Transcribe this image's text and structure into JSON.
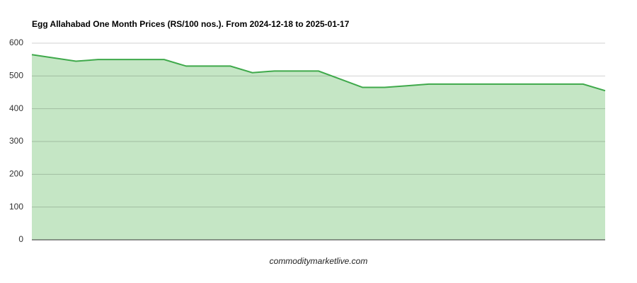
{
  "chart_data": {
    "type": "area",
    "title": "Egg Allahabad One Month Prices (RS/100 nos.). From 2024-12-18 to 2025-01-17",
    "source": "commoditymarketlive.com",
    "values": [
      565,
      555,
      545,
      550,
      550,
      550,
      550,
      530,
      530,
      530,
      510,
      515,
      515,
      515,
      490,
      465,
      465,
      470,
      475,
      475,
      475,
      475,
      475,
      475,
      475,
      475,
      455
    ],
    "color": "#3fa94b",
    "fill": "#c5e6c5",
    "ylim": [
      0,
      600
    ],
    "yticks": [
      0,
      100,
      200,
      300,
      400,
      500,
      600
    ],
    "grid": true
  }
}
